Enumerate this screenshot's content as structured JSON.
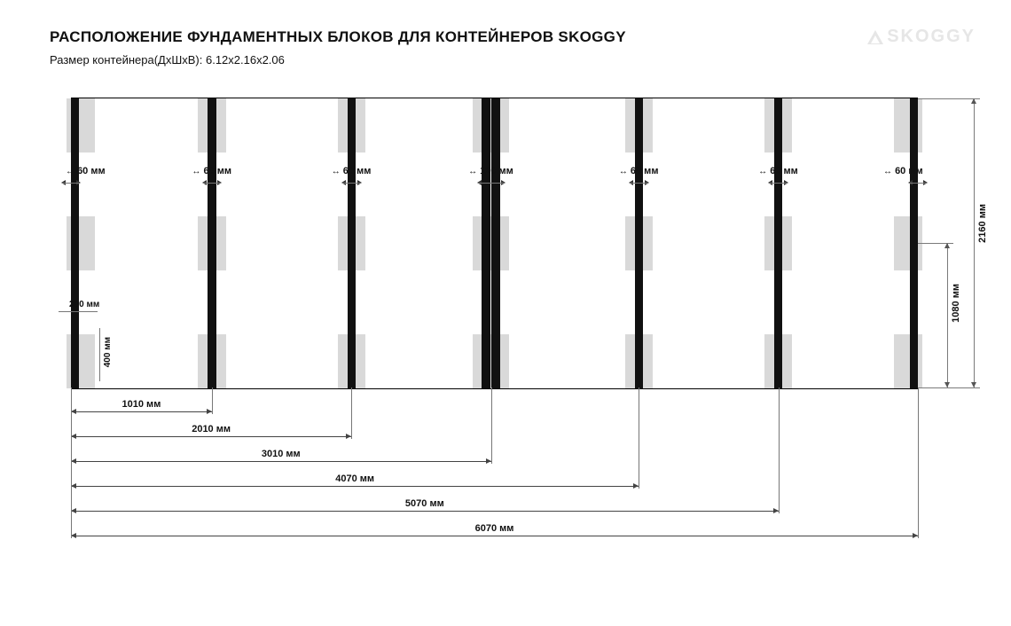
{
  "title": "РАСПОЛОЖЕНИЕ ФУНДАМЕНТНЫХ БЛОКОВ ДЛЯ КОНТЕЙНЕРОВ SKOGGY",
  "subtitle": "Размер контейнера(ДхШхВ): 6.12x2.16x2.06",
  "logo_text": "SKOGGY",
  "unit": "мм",
  "diagram": {
    "type": "infographic",
    "length_mm": 6070,
    "width_mm": 2160,
    "right_dims": [
      2160,
      1080
    ],
    "beam_x_mm": [
      0,
      1010,
      2010,
      3010,
      4070,
      5070,
      6070
    ],
    "beam_width_mm": {
      "single": 60,
      "double_center": 120,
      "note_offset_top_mm": 640
    },
    "beam_width_labels": [
      "60 мм",
      "60 мм",
      "60 мм",
      "120 мм",
      "60 мм",
      "60 мм",
      "60 мм"
    ],
    "pad": {
      "w_mm": 200,
      "h_mm": 400
    },
    "pad_rows_center_mm": [
      200,
      1080,
      1960
    ],
    "bottom_spans_mm": [
      1010,
      2010,
      3010,
      4070,
      5070,
      6070
    ],
    "inset_labels": {
      "pad_w": "200 мм",
      "pad_h": "400 мм"
    },
    "colors": {
      "pad": "#d9d9d9",
      "beam": "#111111",
      "line": "#7a7a7a",
      "text": "#111111",
      "logo": "#e6e6e6",
      "bg": "#ffffff"
    },
    "fontsizes": {
      "title": 17,
      "subtitle": 13,
      "dim": 11,
      "inset": 10
    }
  }
}
